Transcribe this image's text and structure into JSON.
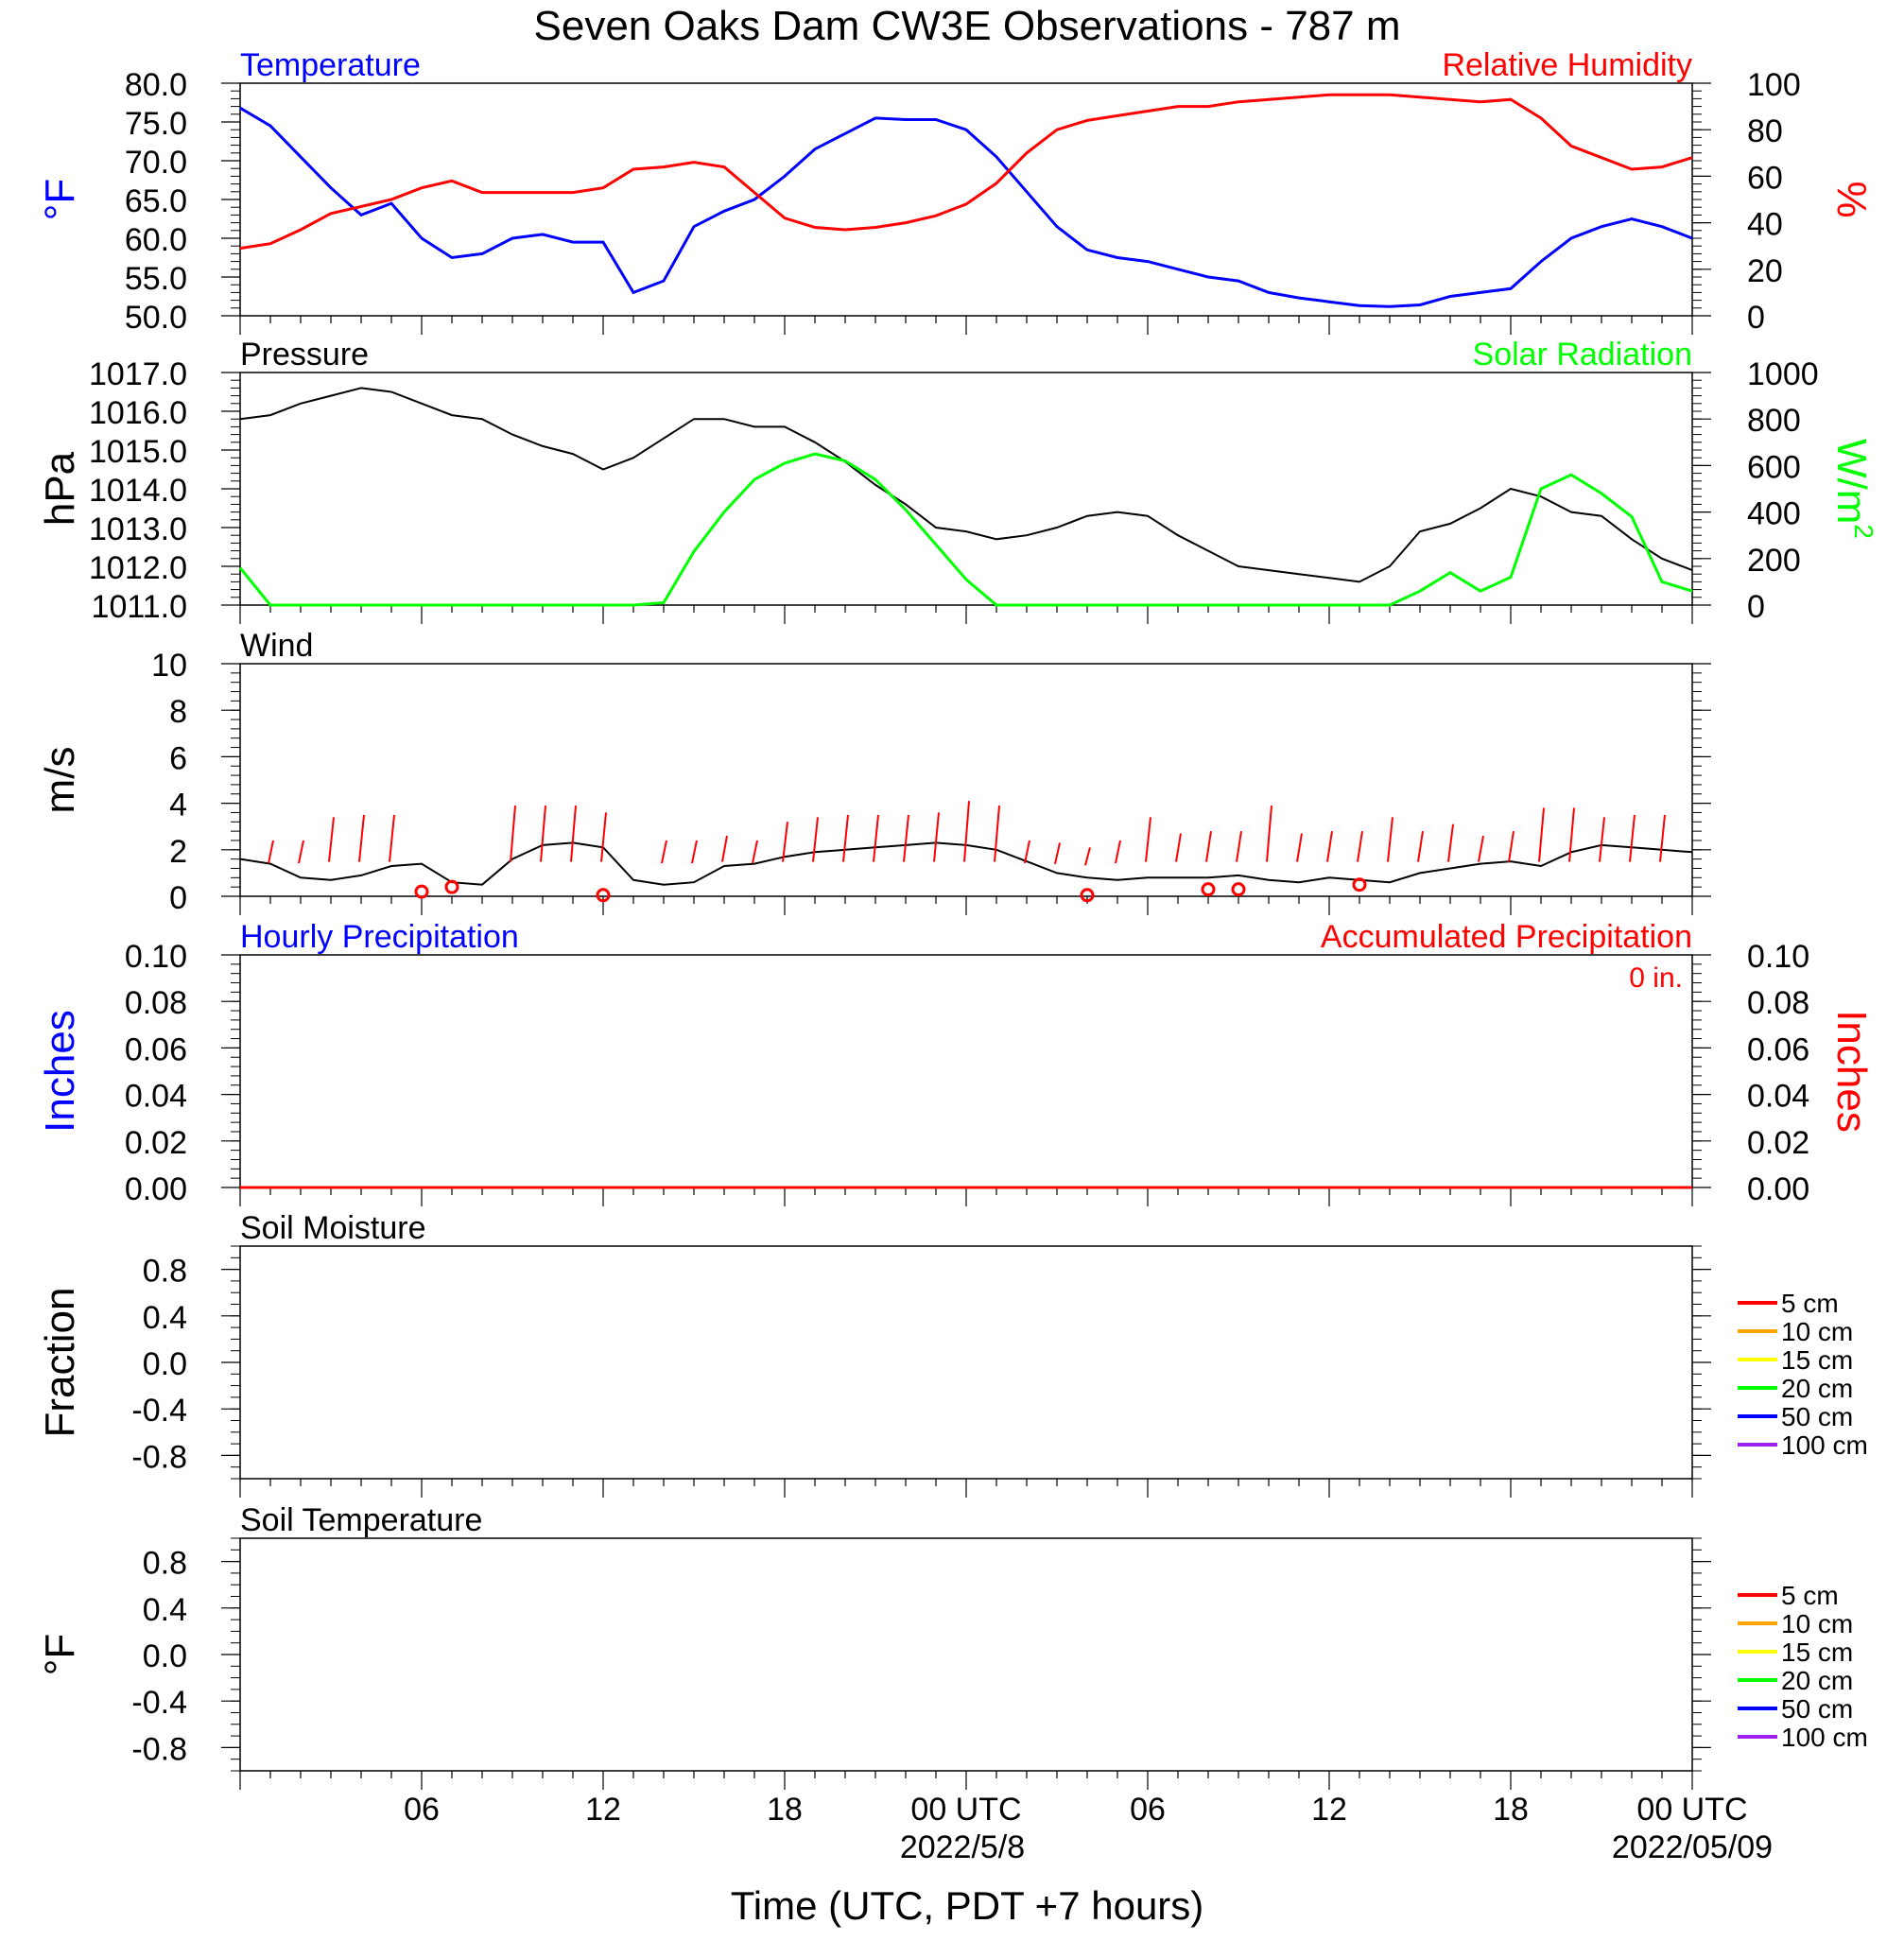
{
  "title": "Seven Oaks Dam CW3E Observations - 787 m",
  "time_axis": {
    "tick_labels": [
      "06",
      "12",
      "18",
      "00 UTC",
      "06",
      "12",
      "18",
      "00 UTC"
    ],
    "date_labels": [
      "2022/5/8",
      "2022/05/09"
    ],
    "xlabel": "Time (UTC, PDT +7 hours)"
  },
  "colors": {
    "temperature": "#0000ff",
    "humidity": "#ff0000",
    "pressure": "#000000",
    "solar": "#00ff00",
    "wind": "#000000",
    "gust": "#ff0000",
    "hourly_precip": "#0000ff",
    "accum_precip": "#ff0000"
  },
  "chart_data": [
    {
      "id": "temp_rh",
      "type": "line",
      "left_title": "Temperature",
      "right_title": "Relative Humidity",
      "left_unit": "°F",
      "right_unit": "%",
      "left_ticks": [
        "80.0",
        "75.0",
        "70.0",
        "65.0",
        "60.0",
        "55.0",
        "50.0"
      ],
      "right_ticks": [
        "100",
        "80",
        "60",
        "40",
        "20",
        "0"
      ],
      "ylim_left": [
        50,
        80
      ],
      "ylim_right": [
        0,
        100
      ],
      "x_hours": [
        0,
        1,
        2,
        3,
        4,
        5,
        6,
        7,
        8,
        9,
        10,
        11,
        12,
        13,
        14,
        15,
        16,
        17,
        18,
        19,
        20,
        21,
        22,
        23,
        24,
        25,
        26,
        27,
        28,
        29,
        30,
        31,
        32,
        33,
        34,
        35,
        36,
        37,
        38,
        39,
        40,
        41,
        42,
        43,
        44,
        45,
        46,
        47,
        48
      ],
      "series": [
        {
          "name": "Temperature",
          "axis": "left",
          "values": [
            76.8,
            74.5,
            70.5,
            66.5,
            63.0,
            64.5,
            60.0,
            57.5,
            58.0,
            60.0,
            60.5,
            59.5,
            59.5,
            53.0,
            54.5,
            61.5,
            63.5,
            65.0,
            68.0,
            71.5,
            73.5,
            75.5,
            75.3,
            75.3,
            74.0,
            70.5,
            66.0,
            61.5,
            58.5,
            57.5,
            57.0,
            56.0,
            55.0,
            54.5,
            53.0,
            52.3,
            51.8,
            51.3,
            51.2,
            51.4,
            52.5,
            53.0,
            53.5,
            57.0,
            60.0,
            61.5,
            62.5,
            61.5,
            60.0
          ]
        },
        {
          "name": "Relative Humidity",
          "axis": "left_rh",
          "values": [
            29,
            31,
            37,
            44,
            47,
            50,
            55,
            58,
            53,
            53,
            53,
            53,
            55,
            63,
            64,
            66,
            64,
            53,
            42,
            38,
            37,
            38,
            40,
            43,
            48,
            57,
            70,
            80,
            84,
            86,
            88,
            90,
            90,
            92,
            93,
            94,
            95,
            95,
            95,
            94,
            93,
            92,
            93,
            85,
            73,
            68,
            63,
            64,
            68
          ]
        },
        {
          "name": "Relative Humidity",
          "axis": "right",
          "values": [
            29,
            31,
            37,
            44,
            47,
            50,
            55,
            58,
            53,
            53,
            53,
            53,
            55,
            63,
            64,
            66,
            64,
            53,
            42,
            38,
            37,
            38,
            40,
            43,
            48,
            57,
            70,
            80,
            84,
            86,
            88,
            90,
            90,
            92,
            93,
            94,
            95,
            95,
            95,
            94,
            93,
            92,
            93,
            85,
            73,
            68,
            63,
            64,
            68
          ]
        }
      ]
    },
    {
      "id": "pressure_solar",
      "type": "line",
      "left_title": "Pressure",
      "right_title": "Solar Radiation",
      "left_unit": "hPa",
      "right_unit": "W/m",
      "right_unit_sup": "2",
      "left_ticks": [
        "1017.0",
        "1016.0",
        "1015.0",
        "1014.0",
        "1013.0",
        "1012.0",
        "1011.0"
      ],
      "right_ticks": [
        "1000",
        "800",
        "600",
        "400",
        "200",
        "0"
      ],
      "ylim_left": [
        1011,
        1017
      ],
      "ylim_right": [
        0,
        1000
      ],
      "x_hours": [
        0,
        1,
        2,
        3,
        4,
        5,
        6,
        7,
        8,
        9,
        10,
        11,
        12,
        13,
        14,
        15,
        16,
        17,
        18,
        19,
        20,
        21,
        22,
        23,
        24,
        25,
        26,
        27,
        28,
        29,
        30,
        31,
        32,
        33,
        34,
        35,
        36,
        37,
        38,
        39,
        40,
        41,
        42,
        43,
        44,
        45,
        46,
        47,
        48
      ],
      "series": [
        {
          "name": "Pressure",
          "axis": "left",
          "values": [
            1015.8,
            1015.9,
            1016.2,
            1016.4,
            1016.6,
            1016.5,
            1016.2,
            1015.9,
            1015.8,
            1015.4,
            1015.1,
            1014.9,
            1014.5,
            1014.8,
            1015.3,
            1015.8,
            1015.8,
            1015.6,
            1015.6,
            1015.2,
            1014.7,
            1014.1,
            1013.6,
            1013.0,
            1012.9,
            1012.7,
            1012.8,
            1013.0,
            1013.3,
            1013.4,
            1013.3,
            1012.8,
            1012.4,
            1012.0,
            1011.9,
            1011.8,
            1011.7,
            1011.6,
            1012.0,
            1012.9,
            1013.1,
            1013.5,
            1014.0,
            1013.8,
            1013.4,
            1013.3,
            1012.7,
            1012.2,
            1011.9
          ]
        },
        {
          "name": "Solar Radiation",
          "axis": "right",
          "values": [
            160,
            0,
            0,
            0,
            0,
            0,
            0,
            0,
            0,
            0,
            0,
            0,
            0,
            0,
            10,
            230,
            400,
            540,
            610,
            650,
            620,
            540,
            410,
            260,
            110,
            0,
            0,
            0,
            0,
            0,
            0,
            0,
            0,
            0,
            0,
            0,
            0,
            0,
            0,
            60,
            140,
            60,
            120,
            500,
            560,
            480,
            380,
            100,
            60
          ]
        }
      ]
    },
    {
      "id": "wind",
      "type": "line",
      "left_title": "Wind",
      "left_unit": "m/s",
      "left_ticks": [
        "10",
        "8",
        "6",
        "4",
        "2",
        "0"
      ],
      "ylim_left": [
        0,
        10
      ],
      "x_hours": [
        0,
        1,
        2,
        3,
        4,
        5,
        6,
        7,
        8,
        9,
        10,
        11,
        12,
        13,
        14,
        15,
        16,
        17,
        18,
        19,
        20,
        21,
        22,
        23,
        24,
        25,
        26,
        27,
        28,
        29,
        30,
        31,
        32,
        33,
        34,
        35,
        36,
        37,
        38,
        39,
        40,
        41,
        42,
        43,
        44,
        45,
        46,
        47,
        48
      ],
      "series": [
        {
          "name": "Wind",
          "axis": "left",
          "values": [
            1.6,
            1.4,
            0.8,
            0.7,
            0.9,
            1.3,
            1.4,
            0.6,
            0.5,
            1.6,
            2.2,
            2.3,
            2.1,
            0.7,
            0.5,
            0.6,
            1.3,
            1.4,
            1.7,
            1.9,
            2.0,
            2.1,
            2.2,
            2.3,
            2.2,
            2.0,
            1.5,
            1.0,
            0.8,
            0.7,
            0.8,
            0.8,
            0.8,
            0.9,
            0.7,
            0.6,
            0.8,
            0.7,
            0.6,
            1.0,
            1.2,
            1.4,
            1.5,
            1.3,
            1.9,
            2.2,
            2.1,
            2.0,
            1.9
          ]
        }
      ],
      "gust_hours": [
        1,
        2,
        3,
        4,
        5,
        9,
        10,
        11,
        12,
        14,
        15,
        16,
        17,
        18,
        19,
        20,
        21,
        22,
        23,
        24,
        25,
        26,
        27,
        28,
        29,
        30,
        31,
        32,
        33,
        34,
        35,
        36,
        37,
        38,
        39,
        40,
        41,
        42,
        43,
        44,
        45,
        46,
        47
      ],
      "gust_values": [
        2.4,
        2.4,
        3.4,
        3.5,
        3.5,
        3.9,
        3.9,
        3.9,
        3.6,
        2.4,
        2.4,
        2.6,
        2.4,
        3.2,
        3.4,
        3.5,
        3.5,
        3.5,
        3.6,
        4.1,
        3.9,
        2.4,
        2.3,
        2.1,
        2.4,
        3.4,
        2.7,
        2.8,
        2.8,
        3.9,
        2.7,
        2.8,
        2.8,
        3.4,
        2.8,
        3.1,
        2.6,
        2.8,
        3.8,
        3.8,
        3.4,
        3.5,
        3.5
      ],
      "calm_hours": [
        6,
        7,
        12,
        28,
        32,
        33,
        37
      ],
      "calm_values": [
        0.2,
        0.4,
        0.05,
        0.05,
        0.3,
        0.3,
        0.5
      ]
    },
    {
      "id": "precip",
      "type": "line",
      "left_title": "Hourly Precipitation",
      "right_title": "Accumulated Precipitation",
      "right_annotation": "0 in.",
      "left_unit": "Inches",
      "right_unit": "Inches",
      "left_ticks": [
        "0.10",
        "0.08",
        "0.06",
        "0.04",
        "0.02",
        "0.00"
      ],
      "right_ticks": [
        "0.10",
        "0.08",
        "0.06",
        "0.04",
        "0.02",
        "0.00"
      ],
      "ylim_left": [
        0,
        0.1
      ],
      "ylim_right": [
        0,
        0.1
      ],
      "series": [
        {
          "name": "Hourly Precipitation",
          "axis": "left",
          "values": [
            0,
            0
          ]
        },
        {
          "name": "Accumulated Precipitation",
          "axis": "right",
          "values": [
            0,
            0
          ]
        }
      ],
      "x_hours": [
        0,
        48
      ]
    },
    {
      "id": "soil_moisture",
      "type": "line",
      "left_title": "Soil Moisture",
      "left_unit": "Fraction",
      "left_ticks": [
        "0.8",
        "0.4",
        "0.0",
        "-0.4",
        "-0.8"
      ],
      "ylim_left": [
        -1,
        1
      ],
      "legend": [
        {
          "label": "5 cm",
          "color": "#ff0000"
        },
        {
          "label": "10 cm",
          "color": "#ffa500"
        },
        {
          "label": "15 cm",
          "color": "#ffff00"
        },
        {
          "label": "20 cm",
          "color": "#00ff00"
        },
        {
          "label": "50 cm",
          "color": "#0000ff"
        },
        {
          "label": "100 cm",
          "color": "#a020f0"
        }
      ]
    },
    {
      "id": "soil_temperature",
      "type": "line",
      "left_title": "Soil Temperature",
      "left_unit": "°F",
      "left_ticks": [
        "0.8",
        "0.4",
        "0.0",
        "-0.4",
        "-0.8"
      ],
      "ylim_left": [
        -1,
        1
      ],
      "legend": [
        {
          "label": "5 cm",
          "color": "#ff0000"
        },
        {
          "label": "10 cm",
          "color": "#ffa500"
        },
        {
          "label": "15 cm",
          "color": "#ffff00"
        },
        {
          "label": "20 cm",
          "color": "#00ff00"
        },
        {
          "label": "50 cm",
          "color": "#0000ff"
        },
        {
          "label": "100 cm",
          "color": "#a020f0"
        }
      ]
    }
  ]
}
